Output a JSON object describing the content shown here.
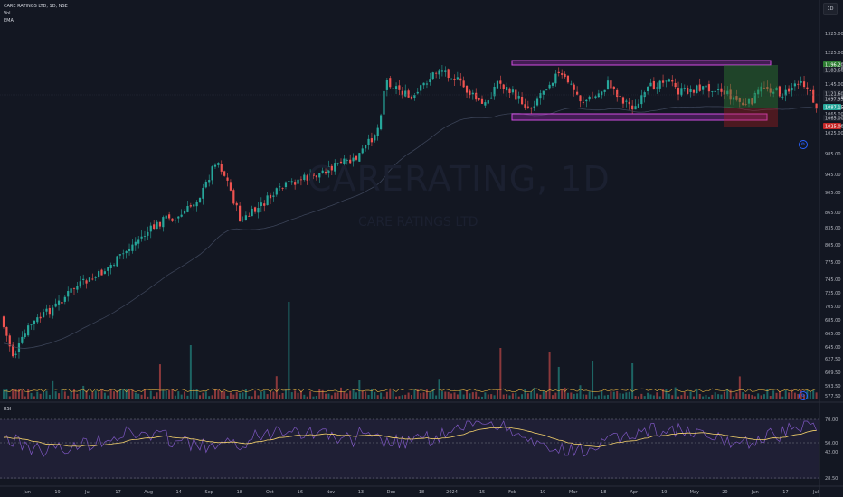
{
  "header": {
    "symbol_line": "CARE RATINGS LTD, 1D, NSE",
    "vol_label": "Vol",
    "ema_label": "EMA",
    "resolution": "1D"
  },
  "watermark": {
    "ticker": "CARERATING, 1D",
    "name": "CARE RATINGS LTD"
  },
  "rsi_label": "RSI",
  "colors": {
    "background": "#131722",
    "up": "#26a69a",
    "down": "#ef5350",
    "ema": "#3b4357",
    "rsi_line": "#7e57c2",
    "rsi_ma": "#f5d26b",
    "zone_border": "#d04ce0",
    "profit": "#1b5e20",
    "loss": "#5c1a22",
    "vol_ma": "#e3b341"
  },
  "chart_data": [
    {
      "type": "candlestick",
      "title": "CARE RATINGS LTD, 1D, NSE",
      "price_axis": {
        "ylim": [
          1005,
          1365
        ],
        "ticks": [
          "1325.00",
          "1225.00",
          "1185.00",
          "1145.00",
          "1105.00",
          "1065.00",
          "1025.00",
          "985.00",
          "945.00",
          "905.00",
          "865.00",
          "835.00",
          "805.00",
          "775.00",
          "745.00",
          "725.00",
          "705.00",
          "685.00",
          "665.00",
          "645.00",
          "627.50",
          "609.50",
          "593.50",
          "577.50"
        ]
      },
      "price_labels": [
        {
          "text": "1196.20",
          "type": "highlight"
        },
        {
          "text": "1183.60",
          "type": "small"
        },
        {
          "text": "1121.60",
          "type": "small"
        },
        {
          "text": "1097.95",
          "type": "small"
        },
        {
          "text": "1087.15",
          "type": "highlight"
        },
        {
          "text": "1065.00",
          "type": "small"
        },
        {
          "text": "1025.00",
          "type": "loss"
        }
      ],
      "x_axis": {
        "ticks": [
          "Jun",
          "19",
          "Jul",
          "17",
          "Aug",
          "14",
          "Sep",
          "18",
          "Oct",
          "16",
          "Nov",
          "13",
          "Dec",
          "18",
          "2024",
          "15",
          "Feb",
          "19",
          "Mar",
          "18",
          "Apr",
          "19",
          "May",
          "20",
          "Jun",
          "17",
          "Jul"
        ]
      },
      "zones": [
        {
          "name": "resistance",
          "from": 1183,
          "to": 1193
        },
        {
          "name": "support",
          "from": 1042,
          "to": 1052
        }
      ],
      "position": {
        "entry": 1097.95,
        "target": 1196.2,
        "stop": 1025.0
      },
      "volume_axis": {
        "ticks": [
          "627.50",
          "609.50",
          "593.50",
          "577.50"
        ]
      }
    },
    {
      "type": "line",
      "title": "RSI",
      "ylim": [
        28.5,
        70
      ],
      "ticks": [
        "70.00",
        "50.00",
        "42.00",
        "28.50"
      ],
      "bands": {
        "upper": 70,
        "middle": 50,
        "lower": 28.5
      }
    }
  ]
}
